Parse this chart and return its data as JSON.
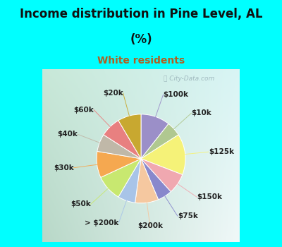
{
  "title1": "Income distribution in Pine Level, AL",
  "title2": "(%)",
  "subtitle": "White residents",
  "title_color": "#111111",
  "subtitle_color": "#b06020",
  "bg_color": "#00FFFF",
  "chart_bg_left": "#c8e8d8",
  "chart_bg_right": "#d8f0f0",
  "watermark": "City-Data.com",
  "labels": [
    "$100k",
    "$10k",
    "$125k",
    "$150k",
    "$75k",
    "$200k",
    "> $200k",
    "$50k",
    "$30k",
    "$40k",
    "$60k",
    "$20k"
  ],
  "values": [
    10,
    5,
    14,
    7,
    5,
    8,
    6,
    9,
    9,
    6,
    7,
    8
  ],
  "colors": [
    "#9b8fc8",
    "#b0c890",
    "#f5f278",
    "#f0a8b0",
    "#8888cc",
    "#f5c8a0",
    "#a8c4e8",
    "#c8e870",
    "#f5a850",
    "#c0b8a8",
    "#e88080",
    "#c8a830"
  ],
  "label_colors": [
    "#9b8fc8",
    "#b0c890",
    "#e8e060",
    "#f0a8b0",
    "#8888cc",
    "#f5c8a0",
    "#a8c4e8",
    "#c8e870",
    "#f5a850",
    "#c0b8a8",
    "#e88080",
    "#c8a830"
  ],
  "startangle": 90,
  "label_fontsize": 7.5,
  "title_fontsize": 12,
  "subtitle_fontsize": 10
}
